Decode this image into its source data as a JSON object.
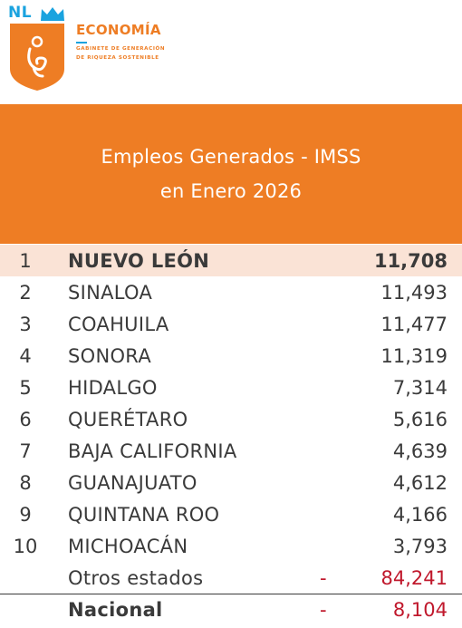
{
  "logo": {
    "nl": "NL"
  },
  "brand": {
    "title": "ECONOMÍA",
    "sub1": "GABINETE DE GENERACIÓN",
    "sub2": "DE RIQUEZA SOSTENIBLE",
    "colors": {
      "orange": "#ee7d24",
      "blue": "#1aa3df"
    }
  },
  "banner": {
    "line1": "Empleos Generados - IMSS",
    "line2": "en Enero 2026",
    "color": "#ee7d24"
  },
  "chart_data": {
    "type": "table",
    "title": "Empleos Generados - IMSS en Enero 2026",
    "columns": [
      "rank",
      "state",
      "value"
    ],
    "rows": [
      {
        "rank": "1",
        "state": "NUEVO LEÓN",
        "value": "11,708",
        "highlight": true
      },
      {
        "rank": "2",
        "state": "SINALOA",
        "value": "11,493"
      },
      {
        "rank": "3",
        "state": "COAHUILA",
        "value": "11,477"
      },
      {
        "rank": "4",
        "state": "SONORA",
        "value": "11,319"
      },
      {
        "rank": "5",
        "state": "HIDALGO",
        "value": "7,314"
      },
      {
        "rank": "6",
        "state": "QUERÉTARO",
        "value": "5,616"
      },
      {
        "rank": "7",
        "state": "BAJA CALIFORNIA",
        "value": "4,639"
      },
      {
        "rank": "8",
        "state": "GUANAJUATO",
        "value": "4,612"
      },
      {
        "rank": "9",
        "state": "QUINTANA ROO",
        "value": "4,166"
      },
      {
        "rank": "10",
        "state": "MICHOACÁN",
        "value": "3,793"
      }
    ],
    "others": {
      "label": "Otros estados",
      "sign": "-",
      "value": "84,241"
    },
    "total": {
      "label": "Nacional",
      "sign": "-",
      "value": "8,104"
    },
    "colors": {
      "highlight": "#fae3d6",
      "negative": "#c0182c"
    }
  }
}
